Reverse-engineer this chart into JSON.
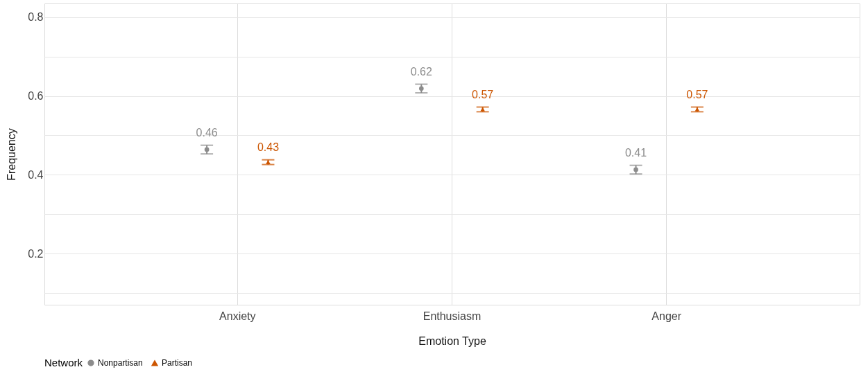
{
  "chart_data": {
    "type": "scatter",
    "xlabel": "Emotion Type",
    "ylabel": "Frequency",
    "legend_title": "Network",
    "legend": "bottom",
    "grid": true,
    "categories": [
      "Anxiety",
      "Enthusiasm",
      "Anger"
    ],
    "ylim": [
      0.07,
      0.835
    ],
    "yticks": [
      {
        "value": 0.1,
        "label": null
      },
      0.2,
      {
        "value": 0.3,
        "label": null
      },
      0.4,
      {
        "value": 0.5,
        "label": null
      },
      0.6,
      {
        "value": 0.7,
        "label": null
      },
      0.8
    ],
    "series": [
      {
        "name": "Nonpartisan",
        "color": "#8c8c8c",
        "marker": "circle",
        "values": [
          0.464,
          0.619,
          0.413
        ],
        "errors": [
          0.011,
          0.011,
          0.011
        ],
        "value_labels": [
          "0.46",
          "0.62",
          "0.41"
        ]
      },
      {
        "name": "Partisan",
        "color": "#cc5500",
        "marker": "triangle",
        "values": [
          0.432,
          0.566,
          0.566
        ],
        "errors": [
          0.006,
          0.006,
          0.006
        ],
        "value_labels": [
          "0.43",
          "0.57",
          "0.57"
        ]
      }
    ]
  }
}
